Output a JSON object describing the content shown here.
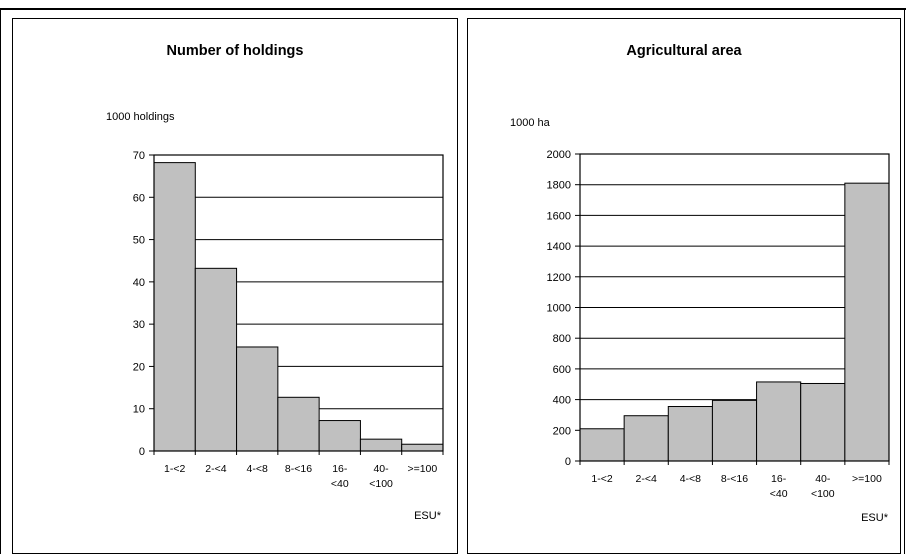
{
  "chart_data": [
    {
      "type": "bar",
      "title": "Number of holdings",
      "ylabel": "1000 holdings",
      "xlabel": "ESU*",
      "categories": [
        "1-<2",
        "2-<4",
        "4-<8",
        "8-<16",
        "16-\n<40",
        "40-\n<100",
        ">=100"
      ],
      "values": [
        68.2,
        43.2,
        24.6,
        12.7,
        7.2,
        2.8,
        1.6
      ],
      "ylim": [
        0,
        70
      ],
      "yticks": [
        0,
        10,
        20,
        30,
        40,
        50,
        60,
        70
      ],
      "grid": true,
      "bar_color": "#c0c0c0",
      "gridline_color": "#000000"
    },
    {
      "type": "bar",
      "title": "Agricultural area",
      "ylabel": "1000 ha",
      "xlabel": "ESU*",
      "categories": [
        "1-<2",
        "2-<4",
        "4-<8",
        "8-<16",
        "16-\n<40",
        "40-\n<100",
        ">=100"
      ],
      "values": [
        210,
        295,
        355,
        395,
        515,
        505,
        1810
      ],
      "ylim": [
        0,
        2000
      ],
      "yticks": [
        0,
        200,
        400,
        600,
        800,
        1000,
        1200,
        1400,
        1600,
        1800,
        2000
      ],
      "grid": true,
      "bar_color": "#c0c0c0",
      "gridline_color": "#000000"
    }
  ]
}
